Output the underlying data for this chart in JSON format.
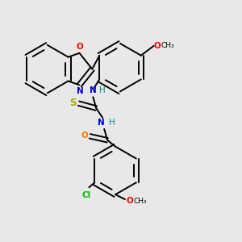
{
  "background_color": "#e8e8e8",
  "bond_color": "#000000",
  "figsize": [
    3.0,
    3.0
  ],
  "dpi": 100,
  "lw": 1.4,
  "fs": 7.5,
  "ring_r": 0.3,
  "colors": {
    "O": "#ff0000",
    "N": "#0000dd",
    "S": "#aaaa00",
    "Cl": "#00bb00",
    "H": "#008888",
    "O_amide": "#ff7700",
    "C": "#000000"
  }
}
